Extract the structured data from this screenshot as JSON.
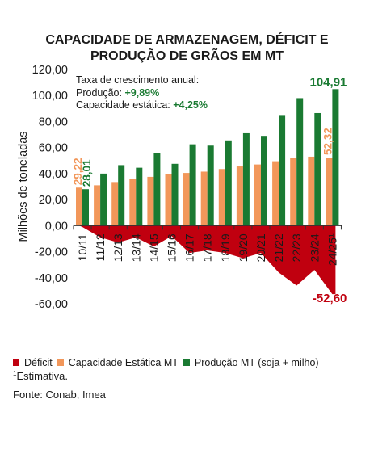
{
  "title_line1": "CAPACIDADE DE ARMAZENAGEM, DÉFICIT E",
  "title_line2": "PRODUÇÃO DE GRÃOS EM MT",
  "annotation": {
    "heading": "Taxa de crescimento anual:",
    "prod_label": "Produção: ",
    "prod_value": "+9,89%",
    "cap_label": "Capacidade estática: ",
    "cap_value": "+4,25%"
  },
  "footnote_mark": "1",
  "footnote_text": "Estimativa.",
  "source": "Fonte: Conab, Imea",
  "colors": {
    "deficit": "#c0000f",
    "capacidade": "#f2975a",
    "producao": "#1a7a32",
    "growth_text": "#1a7a32"
  },
  "chart_data": {
    "type": "bar",
    "ylabel": "Milhões de toneladas",
    "ylim": [
      -60,
      120
    ],
    "yticks": [
      "120,00",
      "100,00",
      "80,00",
      "60,00",
      "40,00",
      "20,00",
      "0,00",
      "-20,00",
      "-40,00",
      "-60,00"
    ],
    "ytick_values": [
      120,
      100,
      80,
      60,
      40,
      20,
      0,
      -20,
      -40,
      -60
    ],
    "categories": [
      "10/11",
      "11/12",
      "12/13",
      "13/14",
      "14/15",
      "15/16",
      "16/17",
      "17/18",
      "18/19",
      "19/20",
      "20/21",
      "21/22",
      "22/23",
      "23/24",
      "24/25¹"
    ],
    "series": [
      {
        "name": "Déficit",
        "type": "area",
        "values": [
          -1,
          -9,
          -13,
          -9,
          -16,
          -8,
          -21,
          -19,
          -21,
          -25,
          -21,
          -36,
          -46,
          -34,
          -52.6
        ]
      },
      {
        "name": "Capacidade Estática MT",
        "type": "bar",
        "values": [
          29.22,
          31,
          33.5,
          36,
          37.5,
          39.5,
          40.5,
          41.5,
          43.5,
          45.5,
          47,
          49.5,
          52,
          53,
          52.32
        ]
      },
      {
        "name": "Produção MT (soja + milho)",
        "type": "bar",
        "values": [
          28.01,
          40,
          46.5,
          44.5,
          55.5,
          47.5,
          62.5,
          61.5,
          65.5,
          71,
          69,
          85,
          98,
          86.5,
          104.91
        ]
      }
    ],
    "data_labels": [
      {
        "text": "29,22",
        "series": "Capacidade Estática MT",
        "category": "10/11"
      },
      {
        "text": "28,01",
        "series": "Produção MT (soja + milho)",
        "category": "10/11"
      },
      {
        "text": "52,32",
        "series": "Capacidade Estática MT",
        "category": "24/25¹"
      },
      {
        "text": "104,91",
        "series": "Produção MT (soja + milho)",
        "category": "24/25¹"
      },
      {
        "text": "-52,60",
        "series": "Déficit",
        "category": "24/25¹"
      }
    ],
    "legend": {
      "position": "bottom",
      "entries": [
        "Déficit",
        "Capacidade Estática MT",
        "Produção MT (soja + milho)"
      ]
    }
  }
}
